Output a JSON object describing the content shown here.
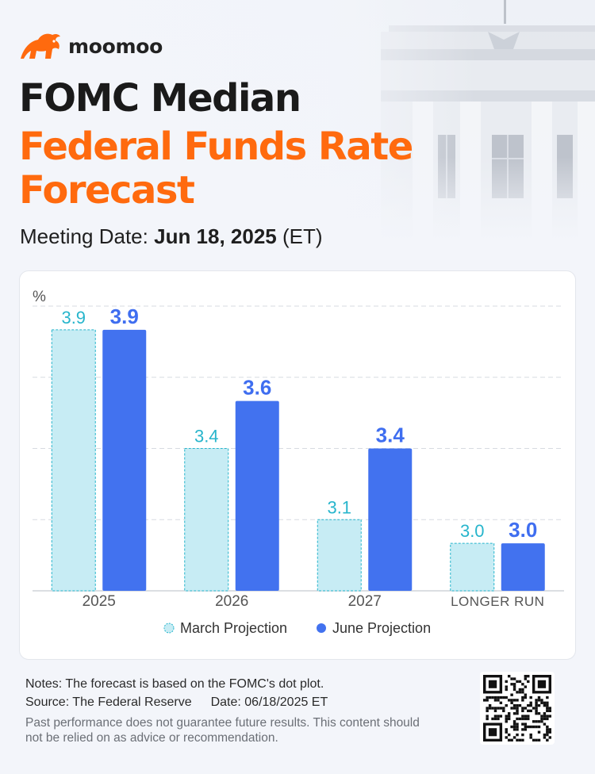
{
  "brand": {
    "name": "moomoo",
    "color": "#ff6a0e"
  },
  "header": {
    "title_line1": "FOMC Median",
    "title_line2": "Federal Funds Rate",
    "title_line3": "Forecast",
    "meeting_label": "Meeting Date:",
    "meeting_date": "Jun 18, 2025",
    "meeting_tz": "(ET)"
  },
  "chart_data": {
    "type": "bar",
    "ylabel": "%",
    "ylim": [
      2.8,
      4.0
    ],
    "grid": true,
    "legend_placement": "bottom-center",
    "categories": [
      "2025",
      "2026",
      "2027",
      "LONGER RUN"
    ],
    "series": [
      {
        "name": "March Projection",
        "values": [
          3.9,
          3.4,
          3.1,
          3.0
        ],
        "color": "#c7ecf4",
        "border": "#27b5cc",
        "label_color": "#27b5cc"
      },
      {
        "name": "June Projection",
        "values": [
          3.9,
          3.6,
          3.4,
          3.0
        ],
        "color": "#4272ef",
        "label_color": "#3f6ef0"
      }
    ]
  },
  "footer": {
    "notes": "Notes: The forecast is based on the FOMC's dot plot.",
    "source": "Source: The Federal Reserve",
    "date": "Date: 06/18/2025 ET",
    "disclaimer": "Past performance does not guarantee future results. This content should not be relied on as advice or recommendation."
  },
  "icons": {
    "logo": "moomoo-bull-icon",
    "qr": "qr-code-icon"
  }
}
